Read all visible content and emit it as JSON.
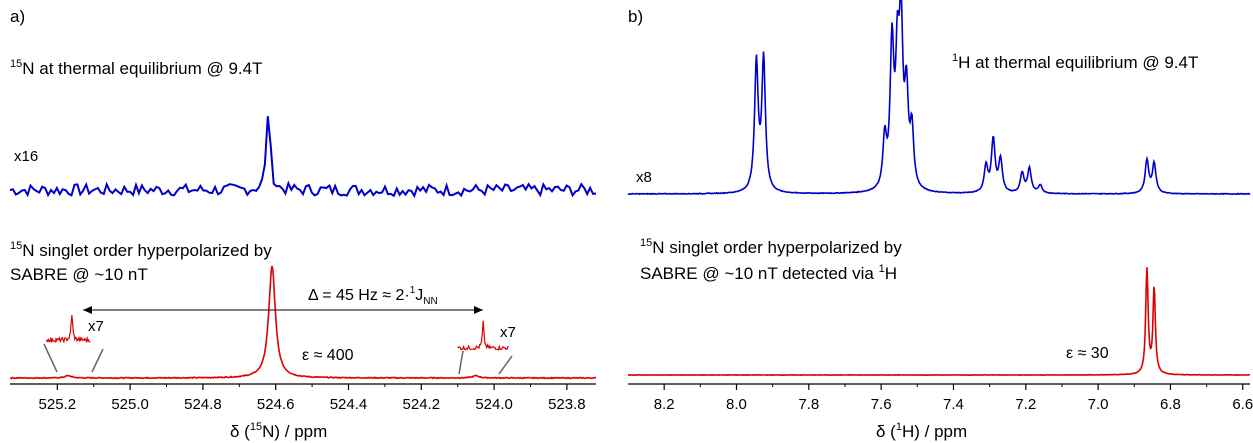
{
  "colors": {
    "thermal": "#0000cc",
    "hyperpolarized": "#dd0000",
    "axis": "#000000"
  },
  "chart_data": [
    {
      "panel_label": "a)",
      "type": "line",
      "x_reversed": true,
      "xlim": [
        525.33,
        523.72
      ],
      "xticks": [
        525.2,
        525.0,
        524.8,
        524.6,
        524.4,
        524.2,
        524.0,
        523.8
      ],
      "xtick_labels": [
        "525.2",
        "525.0",
        "524.8",
        "524.6",
        "524.4",
        "524.2",
        "524.0",
        "523.8"
      ],
      "xlabel": {
        "pre": "δ (",
        "sup": "15",
        "post": "N) / ppm"
      },
      "series": [
        {
          "key": "thermal",
          "label": {
            "sup": "15",
            "text": "N at thermal equilibrium @ 9.4T"
          },
          "scale_label": "x16",
          "peaks": [
            {
              "x": 524.62,
              "height": 1.0
            }
          ],
          "noise": 0.42
        },
        {
          "key": "hyperpolarized",
          "label_line1": {
            "sup": "15",
            "text": "N singlet order hyperpolarized by"
          },
          "label_line2": "SABRE @ ~10 nT",
          "peaks": [
            {
              "x": 524.61,
              "height": 1.0
            },
            {
              "x": 525.17,
              "height": 0.02
            },
            {
              "x": 524.05,
              "height": 0.02
            }
          ],
          "enhancement_label": "ε ≈ 400",
          "insets": [
            {
              "x_range": [
                525.23,
                525.11
              ],
              "peak_x": 525.16,
              "label": "x7"
            },
            {
              "x_range": [
                524.1,
                523.96
              ],
              "peak_x": 524.03,
              "label": "x7"
            }
          ],
          "coupling_annotation": {
            "from_x": 525.16,
            "to_x": 524.03,
            "text": {
              "pre": "Δ = 45 Hz ≈ 2·",
              "sup": "1",
              "mid": "J",
              "sub": "NN"
            }
          }
        }
      ]
    },
    {
      "panel_label": "b)",
      "type": "line",
      "x_reversed": true,
      "xlim": [
        8.3,
        6.58
      ],
      "xticks": [
        8.2,
        8.0,
        7.8,
        7.6,
        7.4,
        7.2,
        7.0,
        6.8,
        6.6
      ],
      "xtick_labels": [
        "8.2",
        "8.0",
        "7.8",
        "7.6",
        "7.4",
        "7.2",
        "7.0",
        "6.8",
        "6.6"
      ],
      "xlabel": {
        "pre": "δ (",
        "sup": "1",
        "post": "H) / ppm"
      },
      "series": [
        {
          "key": "thermal",
          "label": {
            "sup": "1",
            "text": "H at thermal equilibrium @ 9.4T"
          },
          "scale_label": "x8",
          "peaks": [
            {
              "x": 7.945,
              "height": 0.78
            },
            {
              "x": 7.925,
              "height": 0.8
            },
            {
              "x": 7.59,
              "height": 0.3
            },
            {
              "x": 7.57,
              "height": 0.85
            },
            {
              "x": 7.555,
              "height": 0.7
            },
            {
              "x": 7.545,
              "height": 0.92
            },
            {
              "x": 7.53,
              "height": 0.55
            },
            {
              "x": 7.515,
              "height": 0.35
            },
            {
              "x": 7.31,
              "height": 0.16
            },
            {
              "x": 7.29,
              "height": 0.32
            },
            {
              "x": 7.27,
              "height": 0.2
            },
            {
              "x": 7.21,
              "height": 0.12
            },
            {
              "x": 7.19,
              "height": 0.15
            },
            {
              "x": 7.16,
              "height": 0.05
            },
            {
              "x": 6.865,
              "height": 0.2
            },
            {
              "x": 6.845,
              "height": 0.18
            }
          ]
        },
        {
          "key": "hyperpolarized",
          "label_line1": {
            "sup": "15",
            "text": "N singlet order hyperpolarized by"
          },
          "label_line2": {
            "pre": "SABRE @ ~10 nT detected via ",
            "sup": "1",
            "post": "H"
          },
          "enhancement_label": "ε ≈ 30",
          "peaks": [
            {
              "x": 6.865,
              "height": 1.0
            },
            {
              "x": 6.845,
              "height": 0.82
            }
          ]
        }
      ]
    }
  ]
}
